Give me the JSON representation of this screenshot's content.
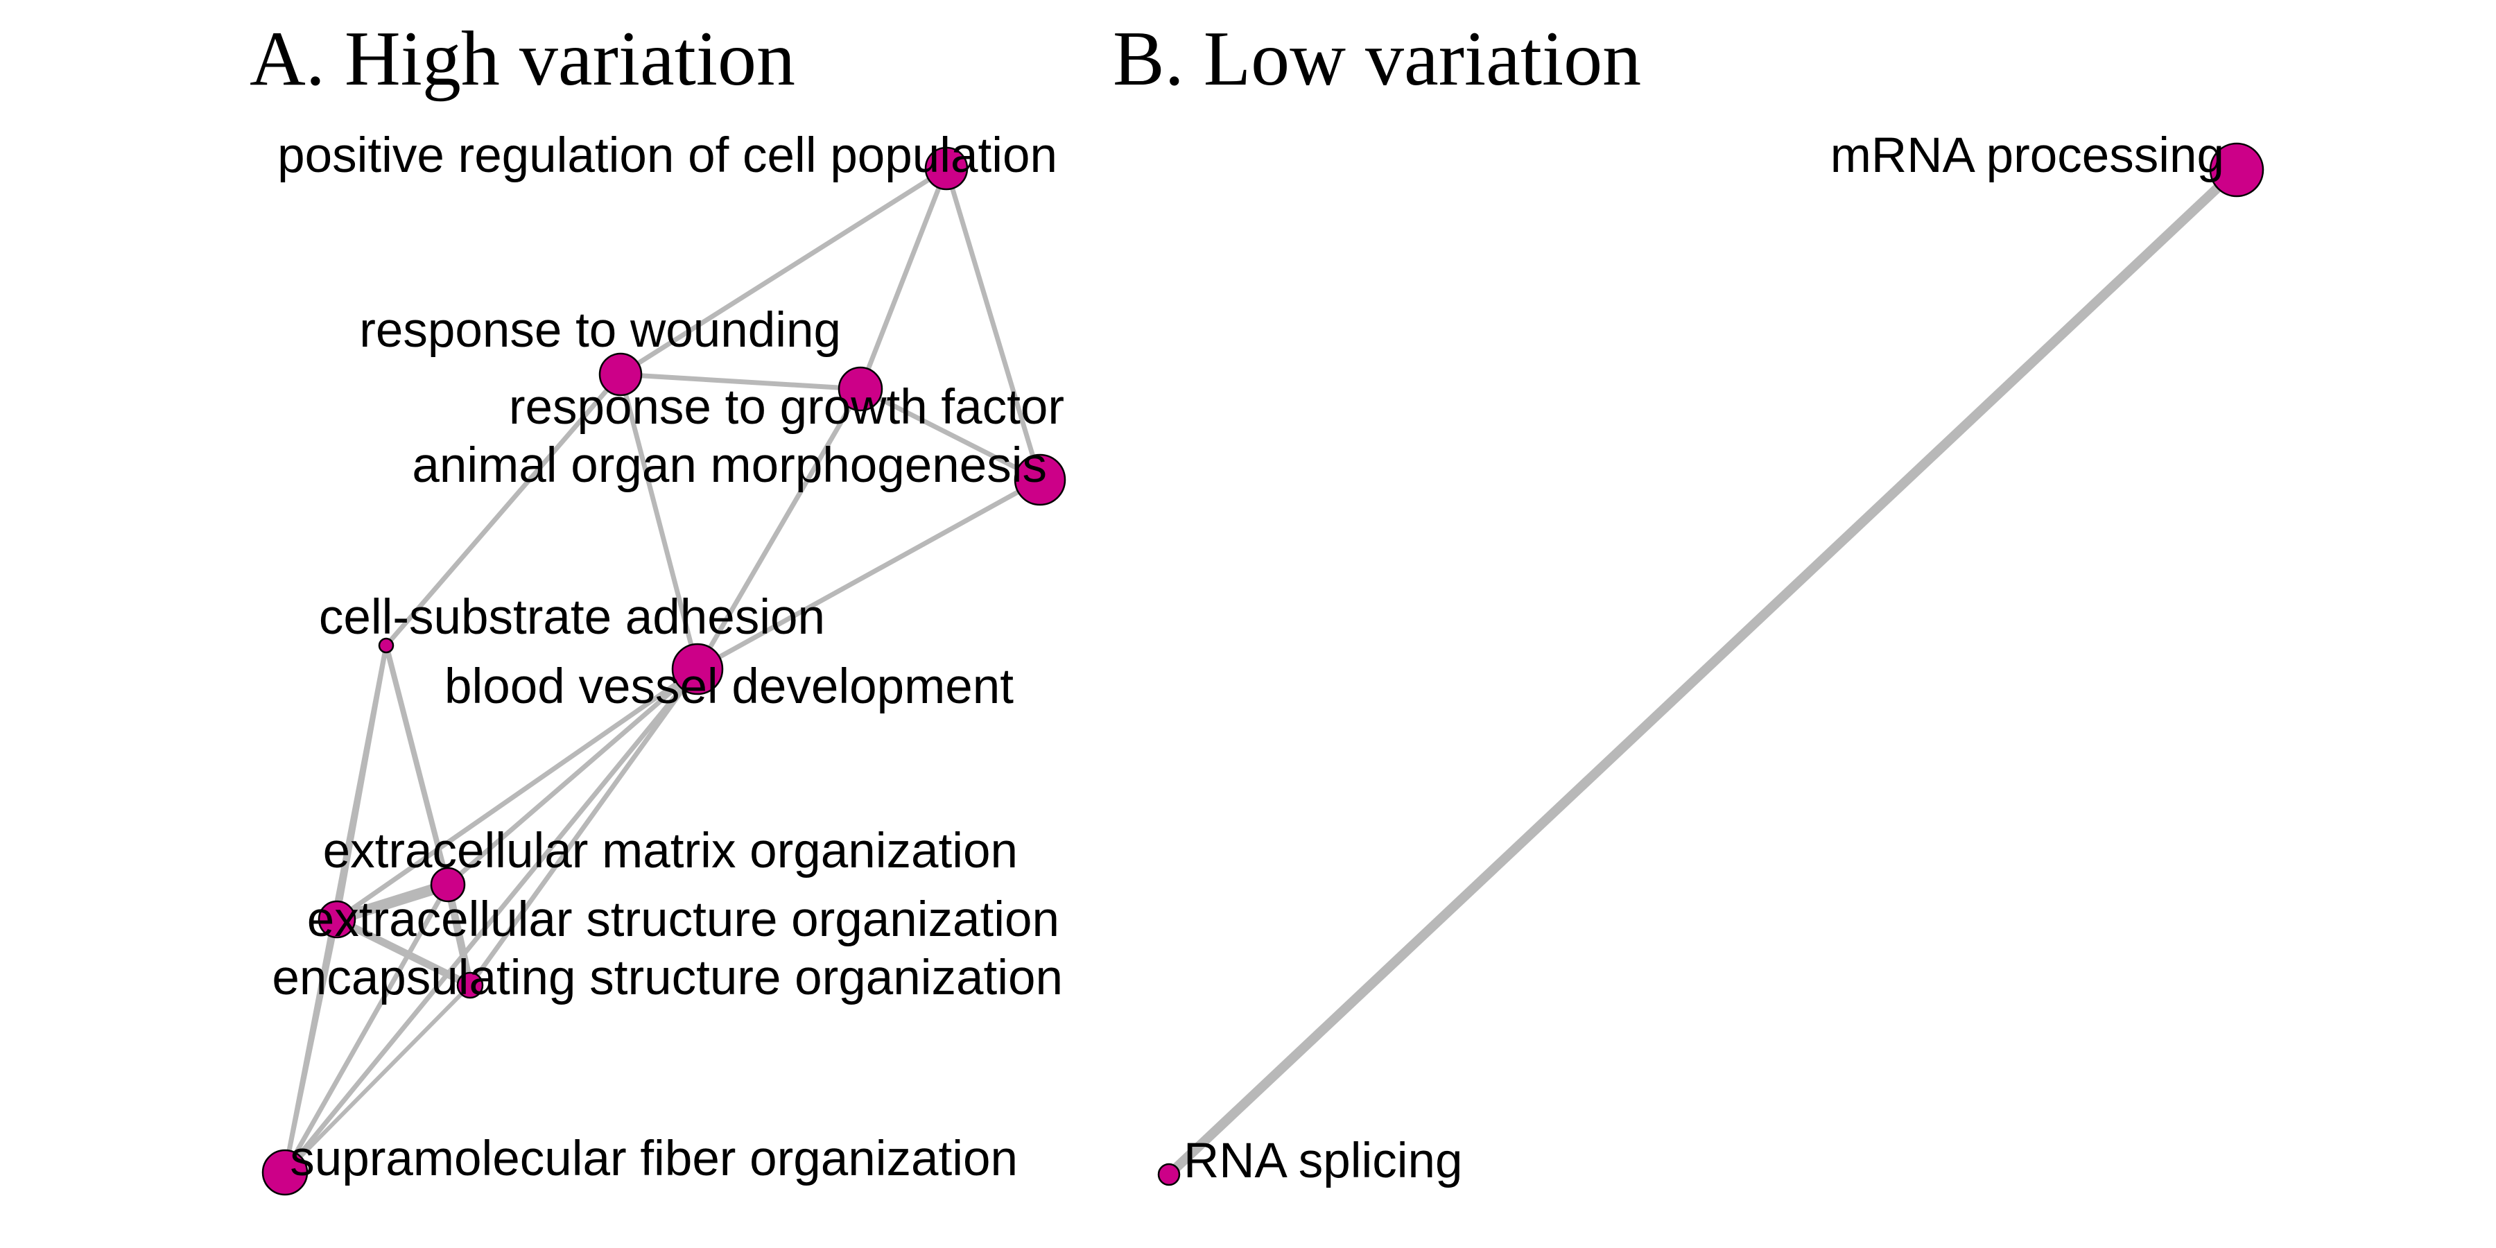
{
  "colors": {
    "node_fill": "#cc0088",
    "node_stroke": "#000000",
    "edge": "#b8b8b8",
    "background": "#ffffff"
  },
  "panels": [
    {
      "id": "A",
      "title": "A. High variation",
      "nodes": [
        {
          "id": "pos_reg",
          "label": "positive regulation of cell population"
        },
        {
          "id": "wounding",
          "label": "response to wounding"
        },
        {
          "id": "growth",
          "label": "response to growth factor"
        },
        {
          "id": "organ",
          "label": "animal organ morphogenesis"
        },
        {
          "id": "adhesion",
          "label": "cell-substrate adhesion"
        },
        {
          "id": "vessel",
          "label": "blood vessel development"
        },
        {
          "id": "ecm",
          "label": "extracellular matrix organization"
        },
        {
          "id": "ecs",
          "label": "extracellular structure organization"
        },
        {
          "id": "encap",
          "label": "encapsulating structure organization"
        },
        {
          "id": "fiber",
          "label": "supramolecular fiber organization"
        }
      ],
      "edges": [
        {
          "source": "pos_reg",
          "target": "wounding"
        },
        {
          "source": "pos_reg",
          "target": "growth"
        },
        {
          "source": "pos_reg",
          "target": "organ"
        },
        {
          "source": "wounding",
          "target": "growth"
        },
        {
          "source": "wounding",
          "target": "adhesion"
        },
        {
          "source": "wounding",
          "target": "vessel"
        },
        {
          "source": "growth",
          "target": "organ"
        },
        {
          "source": "growth",
          "target": "vessel"
        },
        {
          "source": "organ",
          "target": "vessel"
        },
        {
          "source": "adhesion",
          "target": "ecm"
        },
        {
          "source": "adhesion",
          "target": "ecs"
        },
        {
          "source": "adhesion",
          "target": "fiber"
        },
        {
          "source": "vessel",
          "target": "ecm"
        },
        {
          "source": "vessel",
          "target": "ecs"
        },
        {
          "source": "vessel",
          "target": "encap"
        },
        {
          "source": "vessel",
          "target": "fiber"
        },
        {
          "source": "ecm",
          "target": "ecs"
        },
        {
          "source": "ecm",
          "target": "encap"
        },
        {
          "source": "ecm",
          "target": "fiber"
        },
        {
          "source": "ecs",
          "target": "encap"
        },
        {
          "source": "ecs",
          "target": "fiber"
        },
        {
          "source": "encap",
          "target": "fiber"
        }
      ]
    },
    {
      "id": "B",
      "title": "B. Low variation",
      "nodes": [
        {
          "id": "mrna",
          "label": "mRNA processing"
        },
        {
          "id": "splicing",
          "label": "RNA splicing"
        }
      ],
      "edges": [
        {
          "source": "mrna",
          "target": "splicing"
        }
      ]
    }
  ]
}
